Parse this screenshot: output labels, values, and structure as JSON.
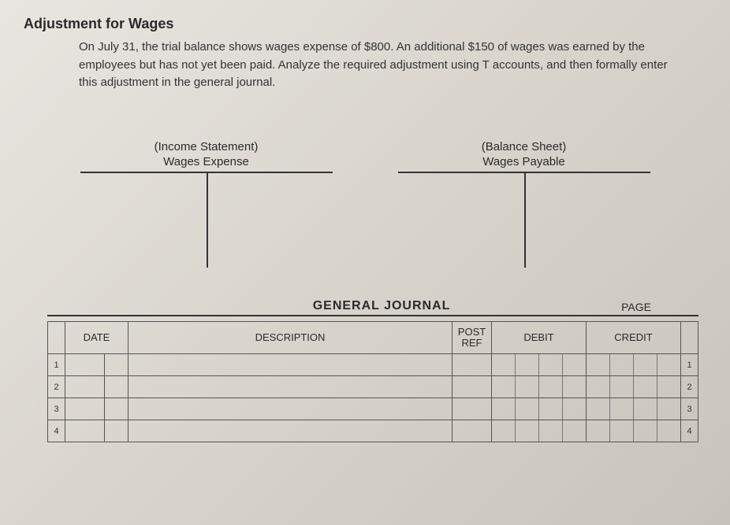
{
  "heading": "Adjustment for Wages",
  "body": "On July 31, the trial balance shows wages expense of $800. An additional $150 of wages was earned by the employees but has not yet been paid. Analyze the required adjustment using T accounts, and then formally enter this adjustment in the general journal.",
  "taccounts": [
    {
      "supertitle": "(Income Statement)",
      "title": "Wages Expense"
    },
    {
      "supertitle": "(Balance Sheet)",
      "title": "Wages Payable"
    }
  ],
  "journal": {
    "title": "GENERAL JOURNAL",
    "page_label": "PAGE",
    "columns": {
      "date": "DATE",
      "description": "DESCRIPTION",
      "postref_l1": "POST",
      "postref_l2": "REF",
      "debit": "DEBIT",
      "credit": "CREDIT"
    },
    "row_numbers": [
      "1",
      "2",
      "3",
      "4"
    ],
    "amount_subcols": 4
  },
  "colors": {
    "text": "#2a2a2a",
    "line": "#333333",
    "bg_light": "#e8e6e0",
    "bg_dark": "#c8c4bc"
  }
}
